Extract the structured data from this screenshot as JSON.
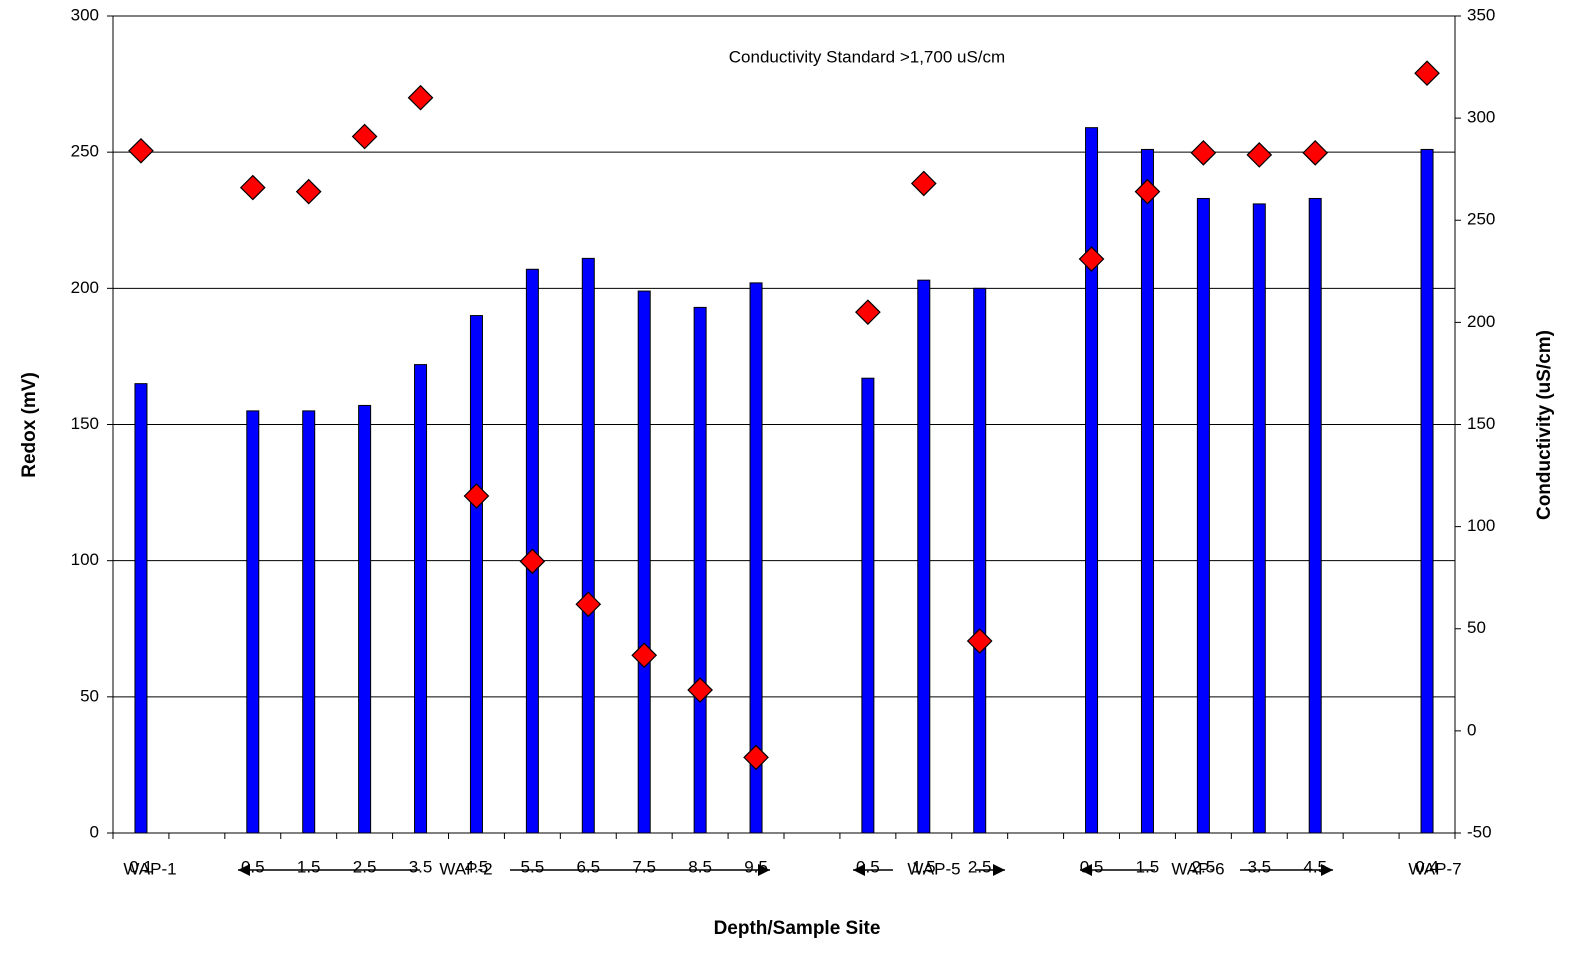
{
  "chart_data": {
    "type": "bar-scatter",
    "annotation": "Conductivity Standard  >1,700 uS/cm",
    "xlabel": "Depth/Sample Site",
    "ylabel": "Redox (mV)",
    "y2label": "Conductivity (uS/cm)",
    "categories": [
      "0.1",
      null,
      "0.5",
      "1.5",
      "2.5",
      "3.5",
      "4.5",
      "5.5",
      "6.5",
      "7.5",
      "8.5",
      "9.5",
      null,
      "0.5",
      "1.5",
      "2.5",
      null,
      "0.5",
      "1.5",
      "2.5",
      "3.5",
      "4.5",
      null,
      "0.4"
    ],
    "groups": [
      "WAP-1",
      "WAP-2",
      "WAP-5",
      "WAP-6",
      "WAP-7"
    ],
    "series": [
      {
        "type": "bar",
        "color": "#0000ff",
        "values": [
          165,
          null,
          155,
          155,
          157,
          172,
          190,
          207,
          211,
          199,
          193,
          202,
          null,
          167,
          203,
          200,
          null,
          259,
          251,
          233,
          231,
          233,
          null,
          251
        ]
      },
      {
        "type": "scatter",
        "axis": "y2",
        "color": "#ff0000",
        "values": [
          284,
          null,
          266,
          264,
          291,
          310,
          115,
          83,
          62,
          37,
          20,
          -13,
          null,
          205,
          268,
          44,
          null,
          231,
          264,
          283,
          282,
          283,
          null,
          322
        ]
      }
    ],
    "ylim": [
      0,
      300
    ],
    "yticks": [
      0,
      50,
      100,
      150,
      200,
      250,
      300
    ],
    "y2lim": [
      -50,
      350
    ],
    "y2ticks": [
      -50,
      0,
      50,
      100,
      150,
      200,
      250,
      300,
      350
    ],
    "grid": true
  }
}
